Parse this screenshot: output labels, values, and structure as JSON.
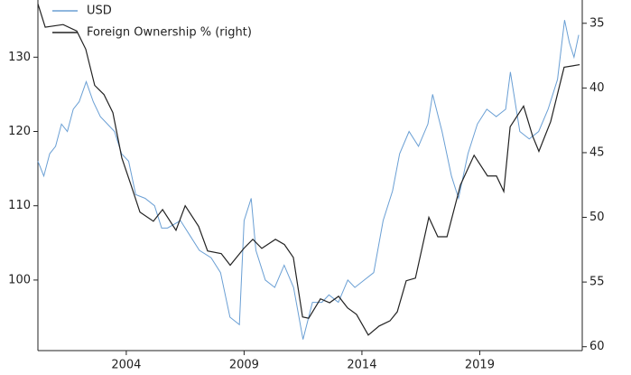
{
  "chart_data": {
    "type": "line",
    "legend": "upper left",
    "xlim": [
      2000.25,
      2023.35
    ],
    "xticks": [
      2004,
      2009,
      2014,
      2019
    ],
    "ylim": [
      90.5,
      137.7
    ],
    "yticks": [
      100,
      110,
      120,
      130
    ],
    "y2lim": [
      60.3,
      33.2
    ],
    "y2ticks": [
      35,
      40,
      45,
      50,
      55,
      60
    ],
    "series": [
      {
        "name": "USD",
        "color": "#6a9fd4",
        "x": [
          2000.25,
          2000.5,
          2000.75,
          2001.0,
          2001.25,
          2001.5,
          2001.75,
          2002.0,
          2002.3,
          2002.6,
          2002.9,
          2003.2,
          2003.5,
          2003.8,
          2004.1,
          2004.4,
          2004.8,
          2005.2,
          2005.5,
          2005.75,
          2006.3,
          2006.7,
          2007.1,
          2007.6,
          2008.0,
          2008.4,
          2008.8,
          2009.0,
          2009.3,
          2009.5,
          2009.9,
          2010.3,
          2010.7,
          2011.1,
          2011.5,
          2011.9,
          2012.3,
          2012.6,
          2013.0,
          2013.4,
          2013.7,
          2014.1,
          2014.5,
          2014.9,
          2015.3,
          2015.6,
          2016.0,
          2016.4,
          2016.8,
          2017.0,
          2017.4,
          2017.8,
          2018.1,
          2018.5,
          2018.9,
          2019.3,
          2019.7,
          2020.1,
          2020.3,
          2020.7,
          2021.1,
          2021.5,
          2021.9,
          2022.3,
          2022.6,
          2022.8,
          2023.0,
          2023.2
        ],
        "values": [
          116,
          114,
          117,
          118,
          121,
          120,
          123,
          124,
          126.7,
          124,
          122,
          121,
          120,
          117,
          116,
          111.5,
          111,
          110,
          107,
          107,
          108,
          106,
          104,
          103,
          101,
          95,
          94,
          108,
          111,
          104,
          100,
          99,
          102,
          99,
          92,
          97,
          97,
          98,
          97,
          100,
          99,
          100,
          101,
          108,
          112,
          117,
          120,
          118,
          121,
          125,
          120,
          114,
          111,
          117,
          121,
          123,
          122,
          123,
          128,
          120,
          119,
          120,
          123,
          127,
          135,
          132,
          130,
          133
        ]
      },
      {
        "name": "Foreign Ownership % (right)",
        "color": "#222222",
        "axis": "y2",
        "x": [
          2000.25,
          2000.56,
          2001.32,
          2001.9,
          2002.28,
          2002.66,
          2003.05,
          2003.43,
          2003.81,
          2004.2,
          2004.58,
          2005.15,
          2005.54,
          2006.11,
          2006.5,
          2007.07,
          2007.45,
          2008.03,
          2008.41,
          2008.99,
          2009.37,
          2009.75,
          2010.33,
          2010.71,
          2011.09,
          2011.48,
          2011.74,
          2012.24,
          2012.63,
          2013.01,
          2013.39,
          2013.77,
          2014.27,
          2014.73,
          2015.19,
          2015.5,
          2015.88,
          2016.27,
          2016.84,
          2017.22,
          2017.61,
          2018.18,
          2018.76,
          2019.33,
          2019.71,
          2020.02,
          2020.29,
          2020.86,
          2021.24,
          2021.51,
          2022.01,
          2022.58,
          2023.24
        ],
        "values": [
          33.5,
          35.3,
          35.1,
          35.6,
          37,
          39.8,
          40.5,
          41.9,
          45.4,
          47.5,
          49.6,
          50.3,
          49.4,
          51,
          49.1,
          50.7,
          52.6,
          52.8,
          53.7,
          52.4,
          51.7,
          52.4,
          51.7,
          52.1,
          53.1,
          57.7,
          57.8,
          56.3,
          56.6,
          56.1,
          57,
          57.5,
          59.1,
          58.4,
          58,
          57.3,
          54.9,
          54.7,
          50,
          51.5,
          51.5,
          47.5,
          45.2,
          46.8,
          46.8,
          48,
          43,
          41.4,
          43.7,
          44.9,
          42.6,
          38.4,
          38.2
        ]
      }
    ]
  }
}
